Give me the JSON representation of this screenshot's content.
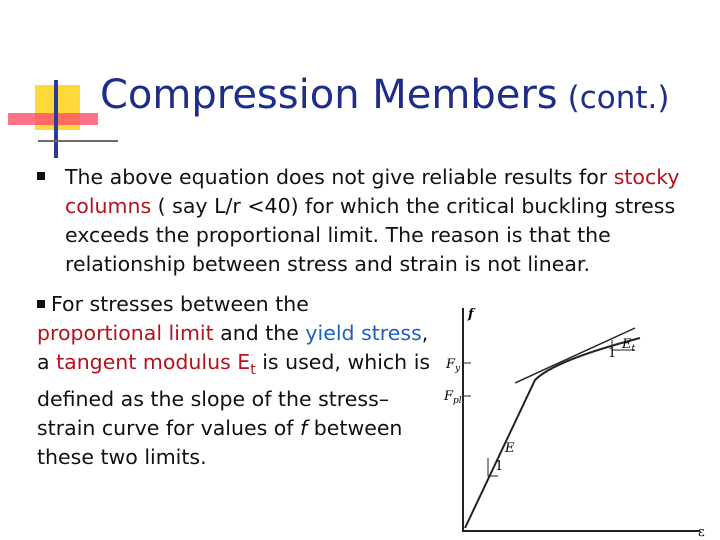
{
  "title": {
    "main": "Compression Members",
    "suffix": "(cont.)"
  },
  "bullets": [
    {
      "runs": [
        {
          "text": "The above equation does not give reliable results for ",
          "style": "plain"
        },
        {
          "text": "stocky columns",
          "style": "red"
        },
        {
          "text": " ( say L/r <40) for which the critical buckling stress exceeds the proportional limit. The reason is that the relationship between stress and strain is not linear.",
          "style": "plain"
        }
      ]
    },
    {
      "runs": [
        {
          "text": "For stresses between the ",
          "style": "plain"
        },
        {
          "text": "proportional limit",
          "style": "red"
        },
        {
          "text": " and the ",
          "style": "plain"
        },
        {
          "text": "yield stress",
          "style": "blue"
        },
        {
          "text": ", a ",
          "style": "plain"
        },
        {
          "text": "tangent modulus E",
          "style": "red"
        },
        {
          "text": "t",
          "style": "red-sub"
        },
        {
          "text": " is used, which is defined as the slope of the stress–strain curve for values of ",
          "style": "plain"
        },
        {
          "text": "f",
          "style": "italic"
        },
        {
          "text": " between these two limits.",
          "style": "plain"
        }
      ]
    }
  ],
  "figure": {
    "f": "f",
    "fy": {
      "text": "F",
      "sub": "y"
    },
    "fpl": {
      "text": "F",
      "sub": "pl"
    },
    "et": {
      "text": "E",
      "sub": "t"
    },
    "e": "E",
    "one_top": "1",
    "one_bottom": "1",
    "strain": "ε"
  }
}
